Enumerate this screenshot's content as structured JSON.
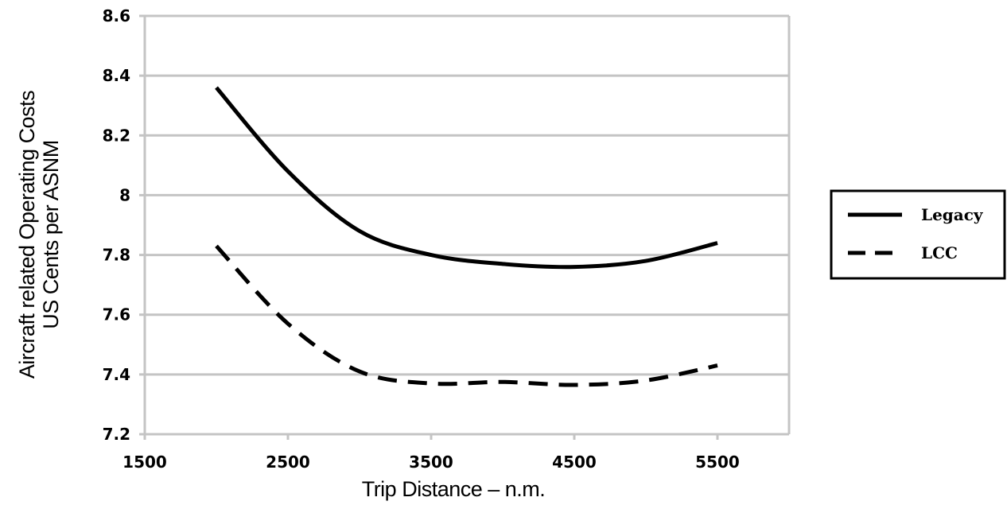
{
  "chart_data": {
    "type": "line",
    "xlabel": "Trip Distance – n.m.",
    "ylabel": [
      "Aircraft related Operating Costs",
      "US Cents per ASNM"
    ],
    "xlim": [
      1500,
      6000
    ],
    "ylim": [
      7.2,
      8.6
    ],
    "x_ticks": [
      1500,
      2500,
      3500,
      4500,
      5500
    ],
    "x_tick_labels": [
      "1500",
      "2500",
      "3500",
      "4500",
      "5500"
    ],
    "y_ticks": [
      7.2,
      7.4,
      7.6,
      7.8,
      8.0,
      8.2,
      8.4,
      8.6
    ],
    "y_tick_labels": [
      "7.2",
      "7.4",
      "7.6",
      "7.8",
      "8",
      "8.2",
      "8.4",
      "8.6"
    ],
    "grid": "horizontal",
    "legend_position": "right",
    "series": [
      {
        "name": "Legacy",
        "style": "solid",
        "x": [
          2000,
          2500,
          3000,
          3500,
          4000,
          4500,
          5000,
          5500
        ],
        "y": [
          8.36,
          8.08,
          7.88,
          7.8,
          7.77,
          7.76,
          7.78,
          7.84
        ]
      },
      {
        "name": "LCC",
        "style": "dashed",
        "x": [
          2000,
          2500,
          3000,
          3500,
          4000,
          4500,
          5000,
          5500
        ],
        "y": [
          7.83,
          7.57,
          7.41,
          7.37,
          7.375,
          7.365,
          7.38,
          7.43
        ]
      }
    ]
  }
}
